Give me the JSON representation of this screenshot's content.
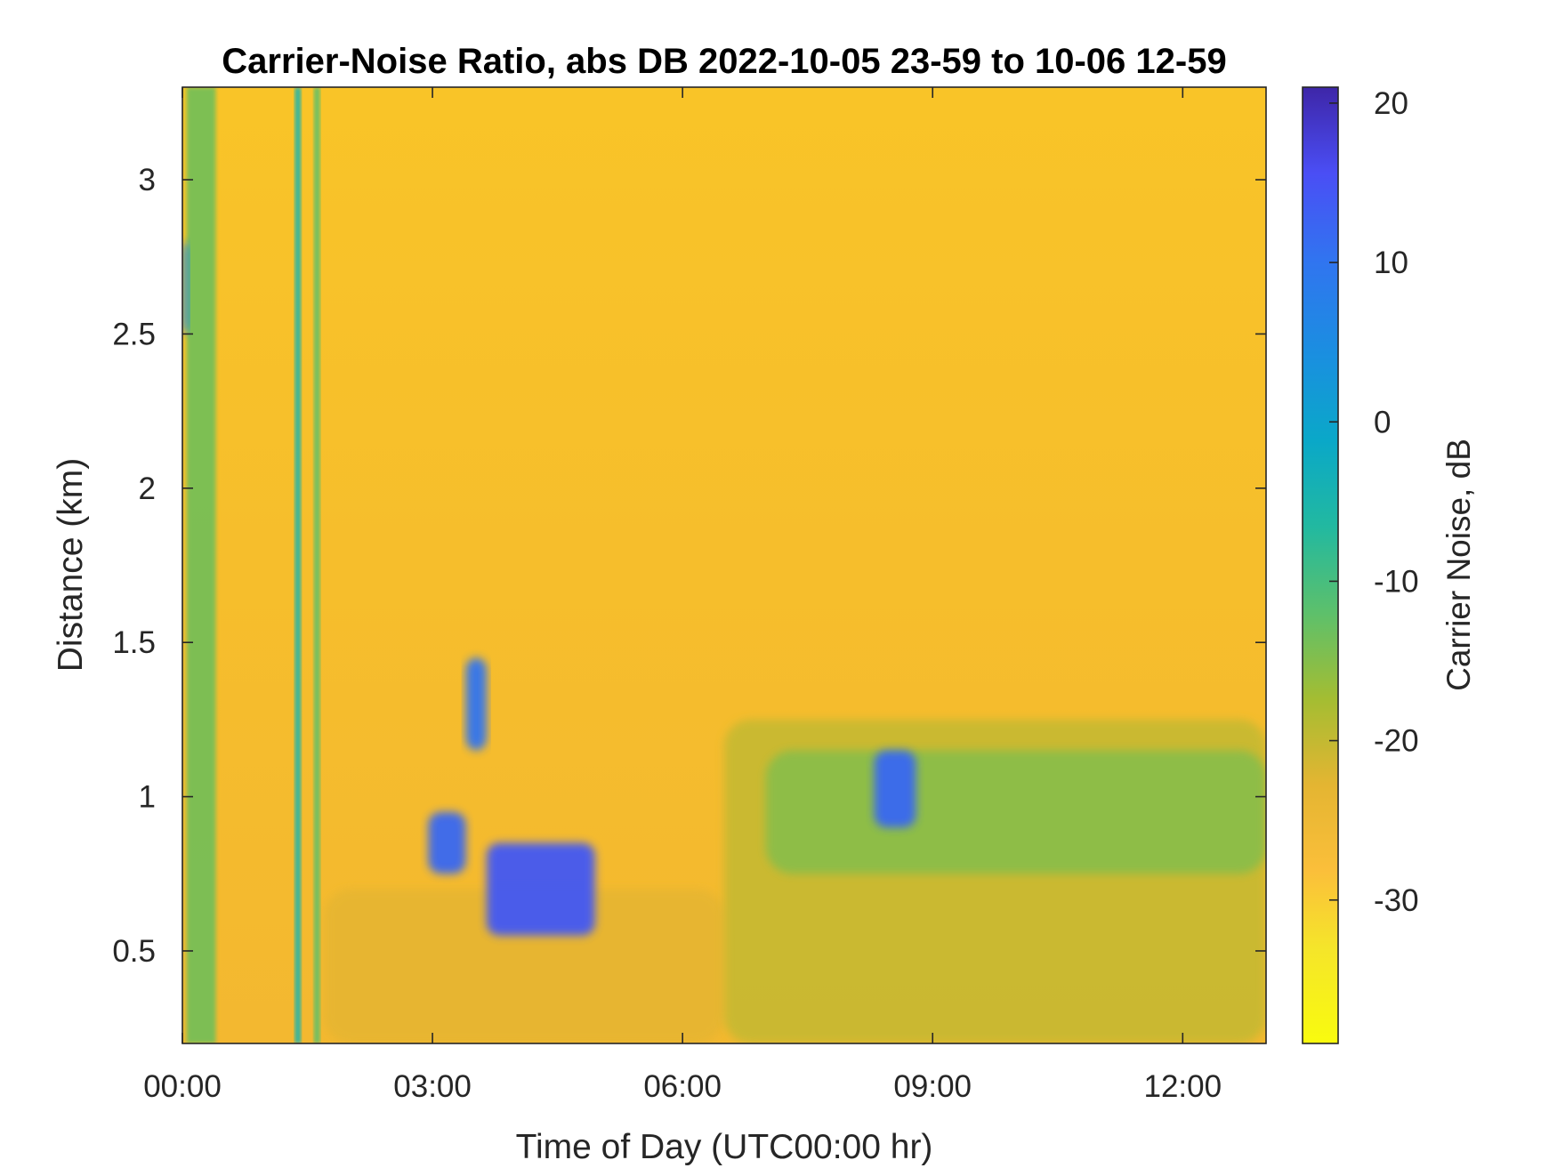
{
  "chart_data": {
    "type": "heatmap",
    "title": "Carrier-Noise Ratio, abs DB 2022-10-05 23-59 to 10-06 12-59",
    "xlabel": "Time of Day (UTC00:00 hr)",
    "ylabel": "Distance (km)",
    "colorbar_label": "Carrier Noise, dB",
    "x_range_hours": [
      0,
      13
    ],
    "y_range_km": [
      0.2,
      3.3
    ],
    "color_range_db": [
      -39,
      21
    ],
    "colormap": "parula (reversed)",
    "grid": false,
    "x_ticks": [
      {
        "value": 0,
        "label": "00:00"
      },
      {
        "value": 3,
        "label": "03:00"
      },
      {
        "value": 6,
        "label": "06:00"
      },
      {
        "value": 9,
        "label": "09:00"
      },
      {
        "value": 12,
        "label": "12:00"
      }
    ],
    "y_ticks": [
      {
        "value": 0.5,
        "label": "0.5"
      },
      {
        "value": 1.0,
        "label": "1"
      },
      {
        "value": 1.5,
        "label": "1.5"
      },
      {
        "value": 2.0,
        "label": "2"
      },
      {
        "value": 2.5,
        "label": "2.5"
      },
      {
        "value": 3.0,
        "label": "3"
      }
    ],
    "colorbar_ticks": [
      {
        "value": 20,
        "label": "20"
      },
      {
        "value": 10,
        "label": "10"
      },
      {
        "value": 0,
        "label": "0"
      },
      {
        "value": -10,
        "label": "-10"
      },
      {
        "value": -20,
        "label": "-20"
      },
      {
        "value": -30,
        "label": "-30"
      }
    ],
    "background_value_db": -28,
    "features": [
      {
        "kind": "boundary layer",
        "hours": [
          1.7,
          6.5
        ],
        "distance_km": [
          0.2,
          0.7
        ],
        "value_db": -23
      },
      {
        "kind": "boundary layer",
        "hours": [
          6.5,
          13.0
        ],
        "distance_km": [
          0.2,
          1.25
        ],
        "value_db": -20
      },
      {
        "kind": "boundary layer core",
        "hours": [
          7.0,
          13.0
        ],
        "distance_km": [
          0.75,
          1.15
        ],
        "value_db": -15
      },
      {
        "kind": "vertical stripe",
        "hours": [
          0.05,
          0.4
        ],
        "distance_km": [
          0.2,
          3.3
        ],
        "value_db": -14
      },
      {
        "kind": "vertical stripe",
        "hours": [
          1.35,
          1.42
        ],
        "distance_km": [
          0.2,
          3.3
        ],
        "value_db": -5
      },
      {
        "kind": "vertical stripe",
        "hours": [
          1.58,
          1.65
        ],
        "distance_km": [
          0.2,
          3.3
        ],
        "value_db": -12
      },
      {
        "kind": "cloud",
        "hours": [
          2.95,
          3.4
        ],
        "distance_km": [
          0.75,
          0.95
        ],
        "value_db": 12
      },
      {
        "kind": "cloud",
        "hours": [
          3.4,
          3.65
        ],
        "distance_km": [
          1.15,
          1.45
        ],
        "value_db": 10
      },
      {
        "kind": "cloud",
        "hours": [
          3.65,
          4.95
        ],
        "distance_km": [
          0.55,
          0.85
        ],
        "value_db": 14
      },
      {
        "kind": "cloud",
        "hours": [
          8.3,
          8.8
        ],
        "distance_km": [
          0.9,
          1.15
        ],
        "value_db": 12
      },
      {
        "kind": "cloud",
        "hours": [
          0.0,
          0.08
        ],
        "distance_km": [
          2.5,
          2.8
        ],
        "value_db": 5
      }
    ]
  }
}
